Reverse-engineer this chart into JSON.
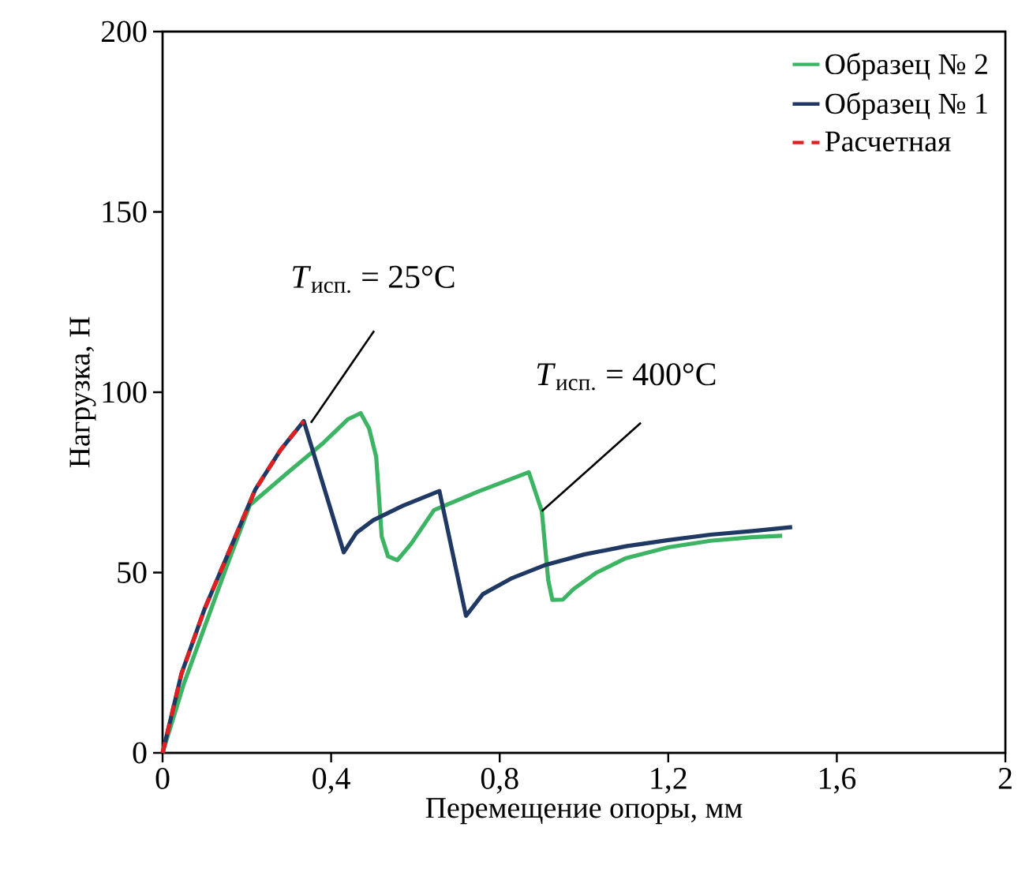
{
  "chart_data": {
    "type": "line",
    "xlabel": "Перемещение опоры, мм",
    "ylabel": "Нагрузка, Н",
    "xlim": [
      0,
      2
    ],
    "ylim": [
      0,
      200
    ],
    "xticks": [
      0,
      {
        "value": 0.4,
        "label": "0,4"
      },
      {
        "value": 0.8,
        "label": "0,8"
      },
      {
        "value": 1.2,
        "label": "1,2"
      },
      {
        "value": 1.6,
        "label": "1,6"
      },
      2
    ],
    "yticks": [
      0,
      50,
      100,
      150,
      200
    ],
    "legend": "top right",
    "grid": false,
    "series": [
      {
        "name": "Образец № 2",
        "color": "#3cb464",
        "line_style": "solid",
        "x": [
          0,
          0.05,
          0.1,
          0.15,
          0.207,
          0.3,
          0.382,
          0.44,
          0.47,
          0.49,
          0.507,
          0.52,
          0.535,
          0.557,
          0.59,
          0.644,
          0.75,
          0.869,
          0.88,
          0.9,
          0.915,
          0.925,
          0.95,
          0.975,
          1.03,
          1.1,
          1.2,
          1.3,
          1.4,
          1.47
        ],
        "values": [
          0,
          19,
          35,
          51,
          68.7,
          78,
          86,
          92.5,
          94.2,
          90,
          82,
          60,
          54.5,
          53.4,
          58,
          67.3,
          72.5,
          77.8,
          74,
          67,
          48,
          42.4,
          42.5,
          45.4,
          50,
          54,
          57,
          58.8,
          59.8,
          60.2
        ]
      },
      {
        "name": "Образец № 1",
        "color": "#1f3864",
        "line_style": "solid",
        "x": [
          0,
          0.045,
          0.1,
          0.157,
          0.22,
          0.28,
          0.335,
          0.43,
          0.46,
          0.5,
          0.57,
          0.657,
          0.72,
          0.76,
          0.83,
          0.906,
          1.0,
          1.1,
          1.2,
          1.3,
          1.4,
          1.494
        ],
        "values": [
          0,
          22,
          40,
          55.6,
          73,
          84,
          92,
          55.6,
          61,
          64.5,
          68.5,
          72.6,
          38,
          44,
          48.5,
          52,
          55,
          57.3,
          59,
          60.5,
          61.5,
          62.6
        ]
      },
      {
        "name": "Расчетная",
        "color": "#e02020",
        "line_style": "dashed",
        "x": [
          0,
          0.045,
          0.1,
          0.157,
          0.22,
          0.28,
          0.335
        ],
        "values": [
          0,
          22,
          40,
          55.6,
          73,
          84,
          92
        ]
      }
    ],
    "annotations": [
      {
        "text": "*T*$_{исп.}$ = 25°C",
        "x": 0.352,
        "y": 91.5
      },
      {
        "text": "*T*$_{исп.}$ = 400°C",
        "x": 0.9,
        "y": 67
      }
    ]
  }
}
